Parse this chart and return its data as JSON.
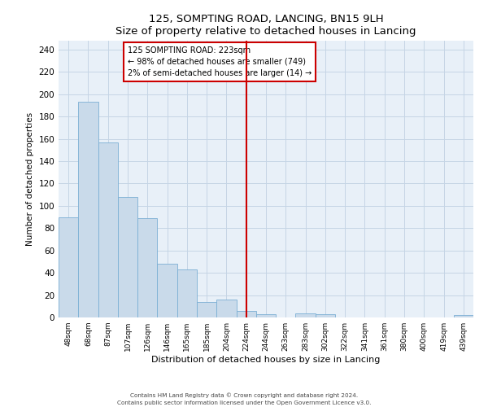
{
  "title": "125, SOMPTING ROAD, LANCING, BN15 9LH",
  "subtitle": "Size of property relative to detached houses in Lancing",
  "xlabel": "Distribution of detached houses by size in Lancing",
  "ylabel": "Number of detached properties",
  "bar_labels": [
    "48sqm",
    "68sqm",
    "87sqm",
    "107sqm",
    "126sqm",
    "146sqm",
    "165sqm",
    "185sqm",
    "204sqm",
    "224sqm",
    "244sqm",
    "263sqm",
    "283sqm",
    "302sqm",
    "322sqm",
    "341sqm",
    "361sqm",
    "380sqm",
    "400sqm",
    "419sqm",
    "439sqm"
  ],
  "bar_heights": [
    90,
    193,
    157,
    108,
    89,
    48,
    43,
    14,
    16,
    6,
    3,
    0,
    4,
    3,
    0,
    0,
    0,
    0,
    0,
    0,
    2
  ],
  "bar_color": "#c9daea",
  "bar_edge_color": "#7bafd4",
  "vline_x": 9.5,
  "vline_color": "#cc0000",
  "annotation_title": "125 SOMPTING ROAD: 223sqm",
  "annotation_line1": "← 98% of detached houses are smaller (749)",
  "annotation_line2": "2% of semi-detached houses are larger (14) →",
  "annotation_box_color": "#cc0000",
  "ylim": [
    0,
    248
  ],
  "yticks": [
    0,
    20,
    40,
    60,
    80,
    100,
    120,
    140,
    160,
    180,
    200,
    220,
    240
  ],
  "footer1": "Contains HM Land Registry data © Crown copyright and database right 2024.",
  "footer2": "Contains public sector information licensed under the Open Government Licence v3.0.",
  "bg_color": "#ffffff",
  "plot_bg_color": "#e8f0f8",
  "grid_color": "#c5d5e5"
}
